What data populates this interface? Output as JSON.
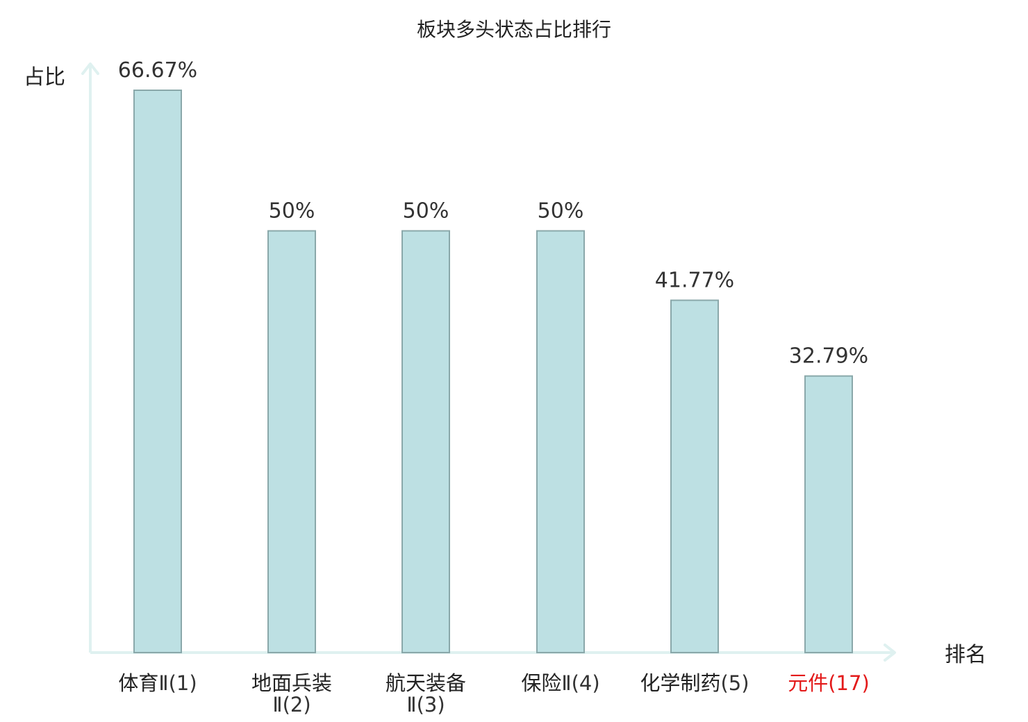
{
  "chart_data": {
    "type": "bar",
    "title": "板块多头状态占比排行",
    "ylabel": "占比",
    "xlabel": "排名",
    "ylim": [
      0,
      70
    ],
    "grid": false,
    "legend": "none",
    "categories": [
      {
        "name": "体育",
        "suffix": "Ⅱ(1)",
        "highlight": false
      },
      {
        "name": "地面兵装",
        "suffix": "Ⅱ(2)",
        "highlight": false
      },
      {
        "name": "航天装备",
        "suffix": "Ⅱ(3)",
        "highlight": false
      },
      {
        "name": "保险",
        "suffix": "Ⅱ(4)",
        "highlight": false
      },
      {
        "name": "化学制药",
        "suffix": "(5)",
        "highlight": false
      },
      {
        "name": "元件",
        "suffix": "(17)",
        "highlight": true
      }
    ],
    "values": [
      66.67,
      50,
      50,
      50,
      41.77,
      32.79
    ],
    "value_labels": [
      "66.67%",
      "50%",
      "50%",
      "50%",
      "41.77%",
      "32.79%"
    ],
    "colors": {
      "bar_fill": "#bde0e3",
      "bar_stroke": "#8aa8aa",
      "axis": "#dff1f0",
      "text": "#222222",
      "suffix_text": "#333333",
      "highlight": "#e31a1a"
    }
  }
}
